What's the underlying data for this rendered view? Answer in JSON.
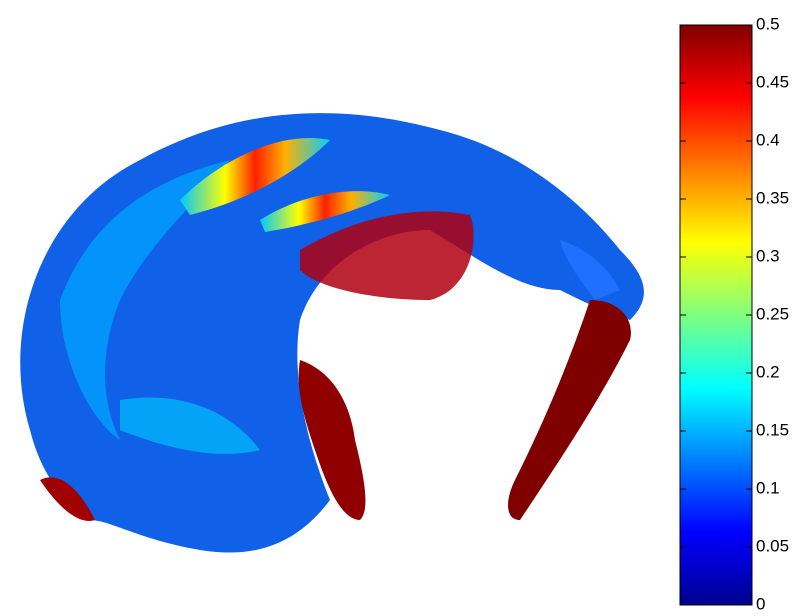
{
  "chart_data": {
    "type": "surface",
    "colormap": "jet",
    "ylim": [
      0,
      0.5
    ],
    "yticks": [
      0,
      0.05,
      0.1,
      0.15,
      0.2,
      0.25,
      0.3,
      0.35,
      0.4,
      0.45,
      0.5
    ]
  }
}
